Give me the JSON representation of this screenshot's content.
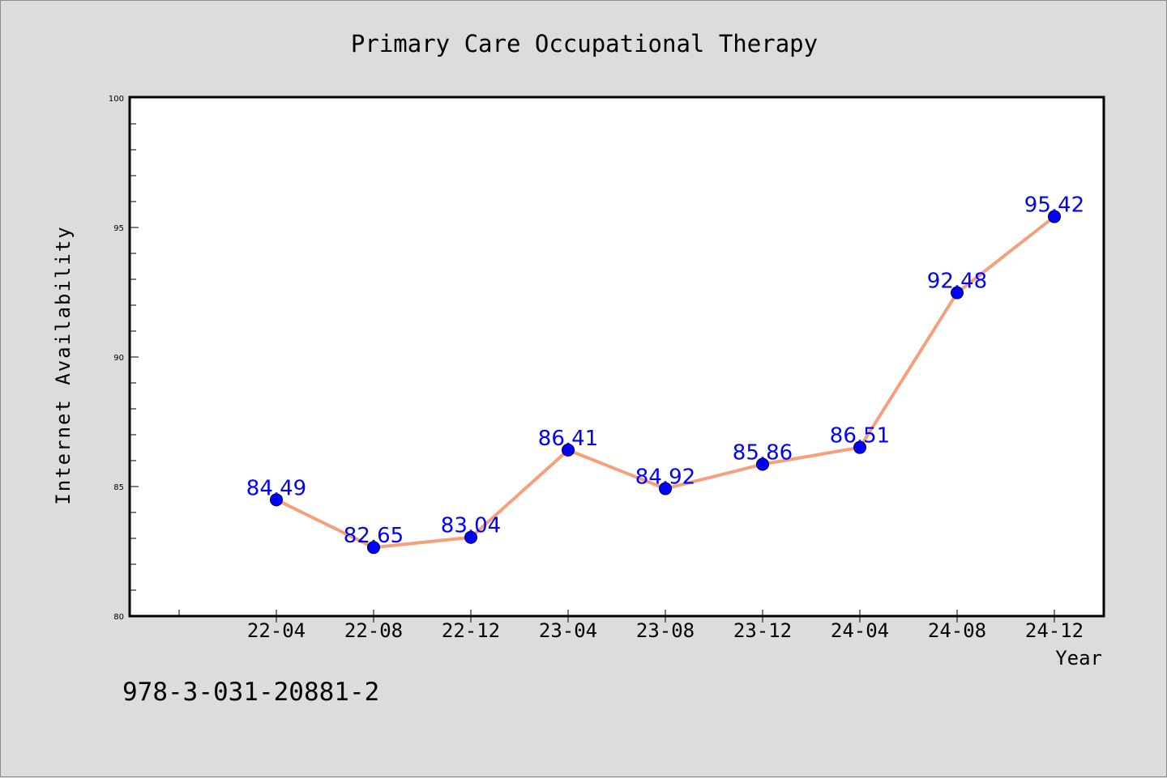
{
  "chart_data": {
    "type": "line",
    "title": "Primary Care Occupational Therapy",
    "xlabel": "Year",
    "ylabel": "Internet Availability",
    "categories": [
      "22-04",
      "22-08",
      "22-12",
      "23-04",
      "23-08",
      "23-12",
      "24-04",
      "24-08",
      "24-12"
    ],
    "series": [
      {
        "values": [
          84.49,
          82.65,
          83.04,
          86.41,
          84.92,
          85.86,
          86.51,
          92.48,
          95.42
        ]
      }
    ],
    "data_labels": [
      "84.49",
      "82.65",
      "83.04",
      "86.41",
      "84.92",
      "85.86",
      "86.51",
      "92.48",
      "95.42"
    ],
    "ylim": [
      80,
      100
    ],
    "yticks": [
      80,
      85,
      90,
      95,
      100
    ],
    "ytick_labels": [
      "80",
      "85",
      "90",
      "95",
      "100"
    ],
    "grid": false,
    "legend": "none",
    "colors": {
      "line": "#f4a07c",
      "marker": "#0000ff",
      "label": "#0000ff"
    }
  },
  "footer_text": "978-3-031-20881-2"
}
